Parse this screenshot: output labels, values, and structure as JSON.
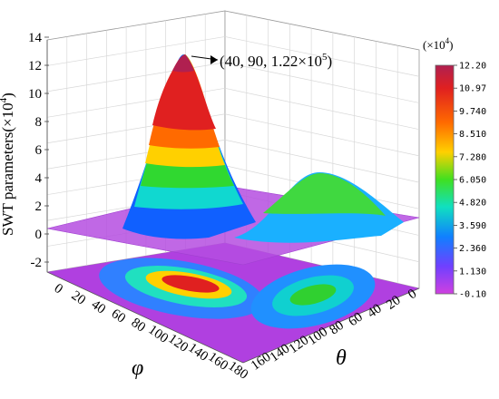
{
  "chart_data": {
    "type": "surface3d",
    "y_axis_label": "SWT parameters(×10",
    "y_axis_exponent": "4",
    "y_axis_label_close": ")",
    "z_ticks": [
      "14",
      "12",
      "10",
      "8",
      "6",
      "4",
      "2",
      "0",
      "-2"
    ],
    "phi_label": "φ",
    "theta_label": "θ",
    "phi_ticks": [
      "0",
      "20",
      "40",
      "60",
      "80",
      "100",
      "120",
      "140",
      "160",
      "180"
    ],
    "theta_ticks": [
      "0",
      "20",
      "40",
      "60",
      "80",
      "100",
      "120",
      "140",
      "160"
    ],
    "annotation_text": "(40, 90, 1.22×10",
    "annotation_exponent": "5",
    "annotation_close": ")",
    "colorbar_unit": "(×10",
    "colorbar_unit_exponent": "4",
    "colorbar_unit_close": ")",
    "colorbar_ticks": [
      "12.20",
      "10.97",
      "9.740",
      "8.510",
      "7.280",
      "6.050",
      "4.820",
      "3.590",
      "2.360",
      "1.130",
      "-0.10"
    ],
    "colorbar_range": [
      -0.1,
      12.2
    ],
    "colors": [
      "#b02050",
      "#e02020",
      "#ff6a00",
      "#ffd000",
      "#b8e000",
      "#20d020",
      "#10e0b0",
      "#20c0ff",
      "#1060ff",
      "#8040ff",
      "#d040e0"
    ],
    "plane_color": "#b54de0",
    "peaks": [
      {
        "phi": 40,
        "theta": 90,
        "value": 12.2
      },
      {
        "phi": 40,
        "theta": 30,
        "value": 6.1
      }
    ]
  }
}
